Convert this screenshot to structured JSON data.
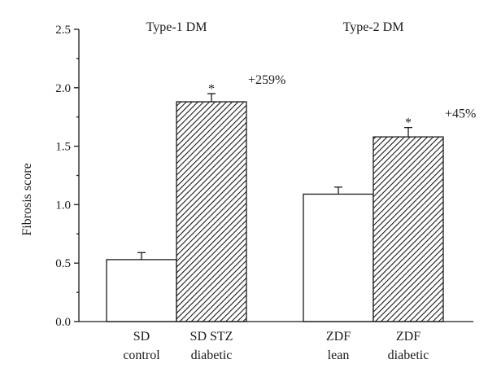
{
  "chart_data": {
    "type": "bar",
    "ylabel": "Fibrosis score",
    "ylim": [
      0,
      2.5
    ],
    "yticks": [
      "0.0",
      "0.5",
      "1.0",
      "1.5",
      "2.0",
      "2.5"
    ],
    "groups": [
      {
        "label": "Type-1 DM"
      },
      {
        "label": "Type-2 DM"
      }
    ],
    "bars": [
      {
        "group": 0,
        "label_line1": "SD",
        "label_line2": "control",
        "value": 0.53,
        "error": 0.06,
        "pattern": "open",
        "star": "",
        "change": ""
      },
      {
        "group": 0,
        "label_line1": "SD STZ",
        "label_line2": "diabetic",
        "value": 1.88,
        "error": 0.07,
        "pattern": "hatched",
        "star": "*",
        "change": "+259%"
      },
      {
        "group": 1,
        "label_line1": "ZDF",
        "label_line2": "lean",
        "value": 1.09,
        "error": 0.06,
        "pattern": "open",
        "star": "",
        "change": ""
      },
      {
        "group": 1,
        "label_line1": "ZDF",
        "label_line2": "diabetic",
        "value": 1.58,
        "error": 0.08,
        "pattern": "hatched",
        "star": "*",
        "change": "+45%"
      }
    ],
    "colors": {
      "ink": "#1a1a1a",
      "open_fill": "#ffffff"
    }
  }
}
